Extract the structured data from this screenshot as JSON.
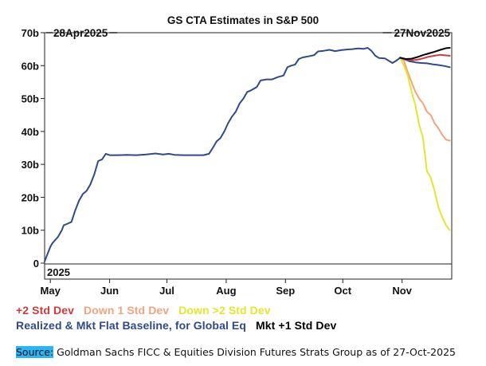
{
  "chart_data": {
    "type": "line",
    "title": "GS CTA Estimates in S&P 500",
    "start_label": "28Apr2025",
    "end_label": "27Nov2025",
    "year_label": "2025",
    "y_ticks": [
      "0",
      "10b",
      "20b",
      "30b",
      "40b",
      "50b",
      "60b",
      "70b"
    ],
    "x_ticks": [
      "May",
      "Jun",
      "Jul",
      "Aug",
      "Sep",
      "Oct",
      "Nov"
    ],
    "x_tick_dates": [
      "2025-05-01",
      "2025-06-01",
      "2025-07-01",
      "2025-08-01",
      "2025-09-01",
      "2025-10-01",
      "2025-11-01"
    ],
    "x_range": [
      "2025-04-28",
      "2025-11-27"
    ],
    "ylim": [
      0,
      70
    ],
    "y_unit": "USD billions",
    "grid": false,
    "series": [
      {
        "name": "Realized & Mkt Flat Baseline, for Global Eq",
        "color": "#2f4a8a",
        "points": [
          [
            "2025-04-28",
            0.5
          ],
          [
            "2025-04-29",
            2
          ],
          [
            "2025-04-30",
            3.5
          ],
          [
            "2025-05-01",
            5
          ],
          [
            "2025-05-02",
            6
          ],
          [
            "2025-05-05",
            8
          ],
          [
            "2025-05-07",
            10
          ],
          [
            "2025-05-08",
            11.5
          ],
          [
            "2025-05-10",
            12
          ],
          [
            "2025-05-12",
            12.5
          ],
          [
            "2025-05-14",
            16
          ],
          [
            "2025-05-15",
            17.5
          ],
          [
            "2025-05-16",
            19
          ],
          [
            "2025-05-18",
            21
          ],
          [
            "2025-05-20",
            22
          ],
          [
            "2025-05-22",
            24
          ],
          [
            "2025-05-24",
            27
          ],
          [
            "2025-05-26",
            31
          ],
          [
            "2025-05-28",
            31.5
          ],
          [
            "2025-05-30",
            33.2
          ],
          [
            "2025-06-01",
            32.8
          ],
          [
            "2025-06-05",
            32.8
          ],
          [
            "2025-06-10",
            32.9
          ],
          [
            "2025-06-15",
            32.8
          ],
          [
            "2025-06-20",
            33.0
          ],
          [
            "2025-06-25",
            33.3
          ],
          [
            "2025-06-29",
            33.0
          ],
          [
            "2025-07-02",
            33.2
          ],
          [
            "2025-07-05",
            32.9
          ],
          [
            "2025-07-10",
            32.8
          ],
          [
            "2025-07-15",
            32.8
          ],
          [
            "2025-07-20",
            32.8
          ],
          [
            "2025-07-23",
            33.2
          ],
          [
            "2025-07-25",
            35
          ],
          [
            "2025-07-27",
            37
          ],
          [
            "2025-07-29",
            38
          ],
          [
            "2025-07-31",
            40
          ],
          [
            "2025-08-02",
            42.5
          ],
          [
            "2025-08-04",
            44.5
          ],
          [
            "2025-08-06",
            46
          ],
          [
            "2025-08-08",
            48.5
          ],
          [
            "2025-08-10",
            50
          ],
          [
            "2025-08-12",
            52
          ],
          [
            "2025-08-14",
            52.5
          ],
          [
            "2025-08-17",
            53.5
          ],
          [
            "2025-08-19",
            55.5
          ],
          [
            "2025-08-22",
            55.8
          ],
          [
            "2025-08-25",
            55.8
          ],
          [
            "2025-08-28",
            56.5
          ],
          [
            "2025-08-31",
            57
          ],
          [
            "2025-09-02",
            59.5
          ],
          [
            "2025-09-04",
            60
          ],
          [
            "2025-09-06",
            60.3
          ],
          [
            "2025-09-08",
            62
          ],
          [
            "2025-09-10",
            62.5
          ],
          [
            "2025-09-13",
            62.8
          ],
          [
            "2025-09-16",
            63.2
          ],
          [
            "2025-09-18",
            64.3
          ],
          [
            "2025-09-21",
            64.5
          ],
          [
            "2025-09-24",
            64.8
          ],
          [
            "2025-09-27",
            64.4
          ],
          [
            "2025-09-30",
            64.7
          ],
          [
            "2025-10-03",
            64.9
          ],
          [
            "2025-10-06",
            65.0
          ],
          [
            "2025-10-09",
            65.2
          ],
          [
            "2025-10-12",
            65.1
          ],
          [
            "2025-10-14",
            65.4
          ],
          [
            "2025-10-16",
            64.5
          ],
          [
            "2025-10-18",
            63
          ],
          [
            "2025-10-20",
            62.3
          ],
          [
            "2025-10-23",
            62.2
          ],
          [
            "2025-10-25",
            61.5
          ],
          [
            "2025-10-27",
            60.8
          ],
          [
            "2025-10-29",
            61.5
          ],
          [
            "2025-10-31",
            62.4
          ],
          [
            "2025-11-02",
            62.0
          ],
          [
            "2025-11-05",
            61.3
          ],
          [
            "2025-11-08",
            61.0
          ],
          [
            "2025-11-11",
            60.8
          ],
          [
            "2025-11-14",
            60.7
          ],
          [
            "2025-11-17",
            60.4
          ],
          [
            "2025-11-20",
            60.2
          ],
          [
            "2025-11-23",
            59.9
          ],
          [
            "2025-11-26",
            59.5
          ]
        ]
      },
      {
        "name": "Mkt +1 Std Dev",
        "color": "#000000",
        "points": [
          [
            "2025-10-31",
            62.4
          ],
          [
            "2025-11-03",
            62.0
          ],
          [
            "2025-11-06",
            62.1
          ],
          [
            "2025-11-09",
            62.6
          ],
          [
            "2025-11-12",
            63.2
          ],
          [
            "2025-11-15",
            63.7
          ],
          [
            "2025-11-18",
            64.2
          ],
          [
            "2025-11-21",
            64.8
          ],
          [
            "2025-11-24",
            65.3
          ],
          [
            "2025-11-26",
            65.4
          ]
        ]
      },
      {
        "name": "+2 Std Dev",
        "color": "#d23a3a",
        "points": [
          [
            "2025-10-31",
            62.4
          ],
          [
            "2025-11-03",
            61.9
          ],
          [
            "2025-11-06",
            61.6
          ],
          [
            "2025-11-09",
            61.8
          ],
          [
            "2025-11-12",
            62.2
          ],
          [
            "2025-11-15",
            62.7
          ],
          [
            "2025-11-18",
            63.0
          ],
          [
            "2025-11-21",
            63.3
          ],
          [
            "2025-11-24",
            63.1
          ],
          [
            "2025-11-26",
            63.0
          ]
        ]
      },
      {
        "name": "Down 1 Std Dev",
        "color": "#f4a37c",
        "points": [
          [
            "2025-10-31",
            62.4
          ],
          [
            "2025-11-02",
            61.5
          ],
          [
            "2025-11-04",
            58
          ],
          [
            "2025-11-06",
            55
          ],
          [
            "2025-11-08",
            52
          ],
          [
            "2025-11-10",
            50
          ],
          [
            "2025-11-12",
            48.5
          ],
          [
            "2025-11-14",
            46
          ],
          [
            "2025-11-16",
            45
          ],
          [
            "2025-11-18",
            42.5
          ],
          [
            "2025-11-20",
            41
          ],
          [
            "2025-11-22",
            39
          ],
          [
            "2025-11-24",
            37.5
          ],
          [
            "2025-11-26",
            37.2
          ]
        ]
      },
      {
        "name": "Down >2 Std Dev",
        "color": "#e4e52c",
        "points": [
          [
            "2025-10-31",
            62.4
          ],
          [
            "2025-11-02",
            60
          ],
          [
            "2025-11-04",
            57
          ],
          [
            "2025-11-06",
            52
          ],
          [
            "2025-11-08",
            48
          ],
          [
            "2025-11-10",
            42
          ],
          [
            "2025-11-12",
            38
          ],
          [
            "2025-11-14",
            28
          ],
          [
            "2025-11-16",
            26
          ],
          [
            "2025-11-18",
            22
          ],
          [
            "2025-11-20",
            17
          ],
          [
            "2025-11-22",
            14
          ],
          [
            "2025-11-24",
            11.5
          ],
          [
            "2025-11-26",
            10
          ]
        ]
      }
    ]
  },
  "legend": {
    "row1": [
      "+2 Std Dev",
      "Down 1 Std Dev",
      "Down >2 Std Dev"
    ],
    "row2": [
      "Realized & Mkt Flat Baseline, for Global Eq",
      "Mkt +1 Std Dev"
    ],
    "colors": {
      "plus2": "#d23a3a",
      "down1": "#f4a37c",
      "down2": "#e4e52c",
      "baseline": "#2f4a8a",
      "mkt1": "#000000"
    }
  },
  "footer": {
    "source_label": "Source:",
    "text": " Goldman Sachs FICC & Equities Division Futures Strats Group as of 27-Oct-2025"
  }
}
